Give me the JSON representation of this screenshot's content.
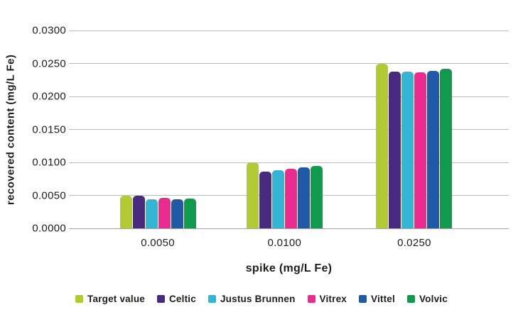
{
  "chart_data": {
    "type": "bar",
    "title": "",
    "xlabel": "spike (mg/L Fe)",
    "ylabel": "recovered content (mg/L Fe)",
    "categories": [
      "0.0050",
      "0.0100",
      "0.0250"
    ],
    "series": [
      {
        "name": "Target value",
        "color": "#b2cb35",
        "values": [
          0.005,
          0.01,
          0.025
        ]
      },
      {
        "name": "Celtic",
        "color": "#482a80",
        "values": [
          0.005,
          0.0086,
          0.0238
        ]
      },
      {
        "name": "Justus Brunnen",
        "color": "#33b5d6",
        "values": [
          0.0044,
          0.0088,
          0.0238
        ]
      },
      {
        "name": "Vitrex",
        "color": "#eb2b90",
        "values": [
          0.0046,
          0.009,
          0.0237
        ]
      },
      {
        "name": "Vittel",
        "color": "#1f59a7",
        "values": [
          0.0044,
          0.0092,
          0.0239
        ]
      },
      {
        "name": "Volvic",
        "color": "#109a4d",
        "values": [
          0.0045,
          0.0095,
          0.0242
        ]
      }
    ],
    "ylim": [
      0,
      0.03
    ],
    "ytick_step": 0.005,
    "ytick_labels": [
      "0.0000",
      "0.0050",
      "0.0100",
      "0.0150",
      "0.0200",
      "0.0250",
      "0.0300"
    ],
    "grid": true,
    "legend_position": "bottom"
  },
  "colors": {
    "grid": "#bcbcbc",
    "axis_baseline": "#a6a6a6",
    "text": "#1d1d1b",
    "background": "#ffffff"
  }
}
